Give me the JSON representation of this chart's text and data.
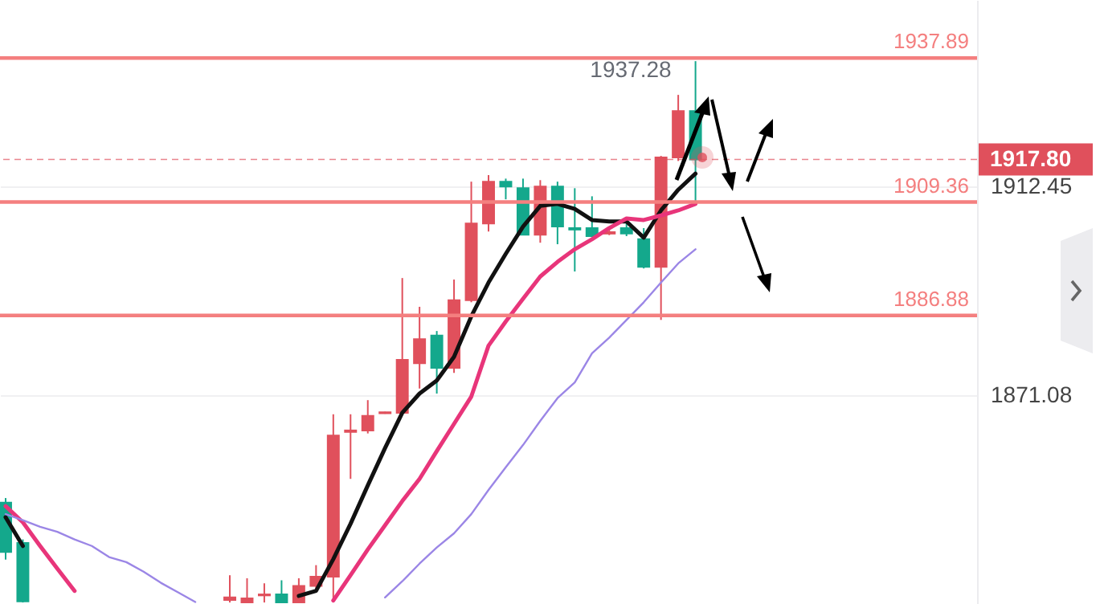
{
  "chart_data": {
    "type": "candlestick",
    "categories": [
      null,
      null,
      null,
      null,
      null,
      null,
      null,
      null,
      null,
      null,
      null,
      null,
      null,
      null,
      null,
      null,
      null,
      null,
      null,
      null,
      null,
      null,
      null,
      null,
      null,
      null,
      null,
      null,
      null,
      null,
      null,
      null,
      null,
      null,
      null,
      null,
      null,
      null,
      null,
      null,
      null,
      null,
      null,
      null,
      null,
      null,
      null,
      null,
      null,
      null,
      null,
      null,
      null,
      null,
      null,
      null,
      null
    ],
    "ohlc": [
      [
        1849.8,
        1850.7,
        1838.5,
        1840.0
      ],
      [
        1841.8,
        1842.5,
        1830.0,
        1830.2
      ],
      null,
      null,
      null,
      null,
      null,
      null,
      null,
      null,
      null,
      null,
      null,
      [
        1830.5,
        1835.4,
        1830.0,
        1831.0
      ],
      [
        1830.0,
        1834.8,
        1830.0,
        1830.8
      ],
      [
        1831.4,
        1833.8,
        1830.0,
        1831.6
      ],
      [
        1831.6,
        1834.4,
        1830.0,
        1830.0
      ],
      [
        1830.0,
        1834.8,
        1830.0,
        1833.3
      ],
      [
        1833.3,
        1837.4,
        1832.8,
        1835.1
      ],
      [
        1835.1,
        1867.3,
        1830.7,
        1863.1
      ],
      [
        1863.8,
        1867.3,
        1854.5,
        1864.1
      ],
      [
        1864.1,
        1870.1,
        1863.5,
        1867.0
      ],
      [
        1867.5,
        1867.8,
        1867.4,
        1867.7
      ],
      [
        1867.6,
        1894.3,
        1867.3,
        1878.1
      ],
      [
        1877.4,
        1888.6,
        1872.4,
        1882.2
      ],
      [
        1882.9,
        1883.8,
        1871.4,
        1876.5
      ],
      [
        1876.5,
        1894.0,
        1875.5,
        1889.9
      ],
      [
        1889.9,
        1913.4,
        1889.5,
        1905.1
      ],
      [
        1905.1,
        1914.7,
        1903.5,
        1913.4
      ],
      [
        1913.4,
        1914.0,
        1909.9,
        1912.45
      ],
      [
        1912.1,
        1914.0,
        1902.9,
        1902.9
      ],
      [
        1902.9,
        1913.7,
        1901.3,
        1912.45
      ],
      [
        1912.45,
        1913.4,
        1901.0,
        1904.5
      ],
      [
        1904.2,
        1912.1,
        1895.6,
        1903.9
      ],
      [
        1904.2,
        1910.5,
        1902.4,
        1902.6
      ],
      [
        1903.1,
        1904.0,
        1902.8,
        1903.4
      ],
      [
        1904.2,
        1905.8,
        1902.6,
        1903.1
      ],
      [
        1902.0,
        1904.2,
        1896.2,
        1896.5
      ],
      [
        1896.5,
        1918.5,
        1886.0,
        1918.2
      ],
      [
        1918.2,
        1930.6,
        1917.5,
        1927.4
      ],
      [
        1927.4,
        1937.28,
        1909.6,
        1917.8
      ],
      null,
      null,
      null,
      null,
      null,
      null,
      null,
      null,
      null,
      null,
      null,
      null,
      null,
      null,
      null,
      null
    ],
    "colors": [
      "#14a88c",
      "#14a88c",
      null,
      null,
      null,
      null,
      null,
      null,
      null,
      null,
      null,
      null,
      null,
      "#e0505c",
      "#e0505c",
      "#e0505c",
      "#14a88c",
      "#e0505c",
      "#e0505c",
      "#e0505c",
      "#e0505c",
      "#e0505c",
      "#e0505c",
      "#e0505c",
      "#e0505c",
      "#14a88c",
      "#e0505c",
      "#e0505c",
      "#e0505c",
      "#14a88c",
      "#14a88c",
      "#e0505c",
      "#14a88c",
      "#14a88c",
      "#14a88c",
      "#e0505c",
      "#14a88c",
      "#14a88c",
      "#e0505c",
      "#e0505c",
      "#14a88c",
      null,
      null,
      null,
      null,
      null,
      null,
      null,
      null,
      null,
      null,
      null,
      null,
      null,
      null,
      null,
      null
    ],
    "series": [
      {
        "type": "line",
        "color": "#111111",
        "values": [
          1846.9,
          1841.2,
          null,
          null,
          null,
          null,
          null,
          null,
          null,
          null,
          null,
          null,
          null,
          null,
          null,
          null,
          null,
          1831.3,
          1832.3,
          1838.6,
          1845.6,
          1853.2,
          1860.6,
          1867.6,
          1871.4,
          1874.0,
          1878.7,
          1886.7,
          1893.4,
          1899.1,
          1904.5,
          1908.6,
          1909.0,
          1908.0,
          1905.8,
          1905.5,
          1905.5,
          1902.3,
          1907.7,
          1911.8,
          1915.0,
          null,
          null,
          null,
          null,
          null,
          null,
          null,
          null,
          null,
          null,
          null,
          null,
          null,
          null,
          null,
          null
        ]
      },
      {
        "type": "line",
        "color": "#e8357a",
        "values": [
          1849.1,
          1845.9,
          1841.2,
          1836.7,
          1832.3,
          null,
          null,
          null,
          null,
          null,
          null,
          null,
          null,
          null,
          null,
          null,
          null,
          null,
          null,
          1830.4,
          1835.4,
          1840.5,
          1845.3,
          1850.1,
          1854.5,
          1860.0,
          1865.4,
          1870.8,
          1880.9,
          1885.7,
          1890.2,
          1894.6,
          1897.5,
          1900.0,
          1902.0,
          1904.2,
          1906.1,
          1905.8,
          1906.7,
          1907.7,
          1909.0,
          null,
          null,
          null,
          null,
          null,
          null,
          null,
          null,
          null,
          null,
          null,
          null,
          null,
          null,
          null,
          null
        ]
      },
      {
        "type": "line",
        "color": "#9b86e6",
        "values": [
          1847.5,
          1846.3,
          1845.0,
          1844.0,
          1842.5,
          1841.2,
          1839.0,
          1838.0,
          1836.1,
          1833.9,
          1832.0,
          1830.1,
          null,
          null,
          null,
          null,
          null,
          null,
          null,
          null,
          null,
          null,
          1831.0,
          1834.2,
          1837.7,
          1840.9,
          1843.7,
          1847.5,
          1852.3,
          1856.8,
          1861.2,
          1866.0,
          1870.5,
          1873.6,
          1879.4,
          1882.5,
          1886.0,
          1889.5,
          1893.4,
          1897.2,
          1900.0,
          null,
          null,
          null,
          null,
          null,
          null,
          null,
          null,
          null,
          null,
          null,
          null,
          null,
          null,
          null,
          null
        ]
      }
    ],
    "ylim": [
      1829.7,
      1949.4
    ],
    "yticks": [
      1912.45,
      1871.08
    ],
    "grid": "y",
    "tick_labels": "y",
    "ref_lines": [
      {
        "axis": "y",
        "value": 1937.89,
        "label": "1937.89",
        "color": "#f47f7f"
      },
      {
        "axis": "y",
        "value": 1909.36,
        "label": "1909.36",
        "color": "#f47f7f"
      },
      {
        "axis": "y",
        "value": 1886.88,
        "label": "1886.88",
        "color": "#f47f7f"
      },
      {
        "axis": "y",
        "value": 1917.8,
        "label": "1917.80",
        "color": "#e0505c",
        "line_style": "dashed"
      }
    ],
    "annotations": [
      {
        "text": "1937.28",
        "y": 1937.28
      }
    ]
  }
}
